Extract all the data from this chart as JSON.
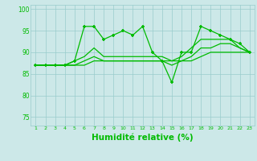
{
  "x": [
    1,
    2,
    3,
    4,
    5,
    6,
    7,
    8,
    9,
    10,
    11,
    12,
    13,
    14,
    15,
    16,
    17,
    18,
    19,
    20,
    21,
    22,
    23
  ],
  "line1": [
    87,
    87,
    87,
    87,
    88,
    96,
    96,
    93,
    94,
    95,
    94,
    96,
    90,
    88,
    83,
    90,
    90,
    96,
    95,
    94,
    93,
    92,
    90
  ],
  "line2": [
    87,
    87,
    87,
    87,
    88,
    89,
    91,
    89,
    89,
    89,
    89,
    89,
    89,
    89,
    88,
    89,
    91,
    93,
    93,
    93,
    93,
    91,
    90
  ],
  "line3": [
    87,
    87,
    87,
    87,
    87,
    88,
    89,
    88,
    88,
    88,
    88,
    88,
    88,
    88,
    88,
    88,
    89,
    91,
    91,
    92,
    92,
    91,
    90
  ],
  "line4": [
    87,
    87,
    87,
    87,
    87,
    87,
    88,
    88,
    88,
    88,
    88,
    88,
    88,
    88,
    87,
    88,
    88,
    89,
    90,
    90,
    90,
    90,
    90
  ],
  "line_color": "#00bb00",
  "bg_color": "#cce8e8",
  "grid_color": "#99cccc",
  "ylim": [
    73,
    101
  ],
  "yticks": [
    75,
    80,
    85,
    90,
    95,
    100
  ],
  "xlabel": "Humidité relative (%)",
  "xlabel_color": "#00bb00",
  "tick_color": "#00bb00",
  "label_fontsize": 7.5
}
